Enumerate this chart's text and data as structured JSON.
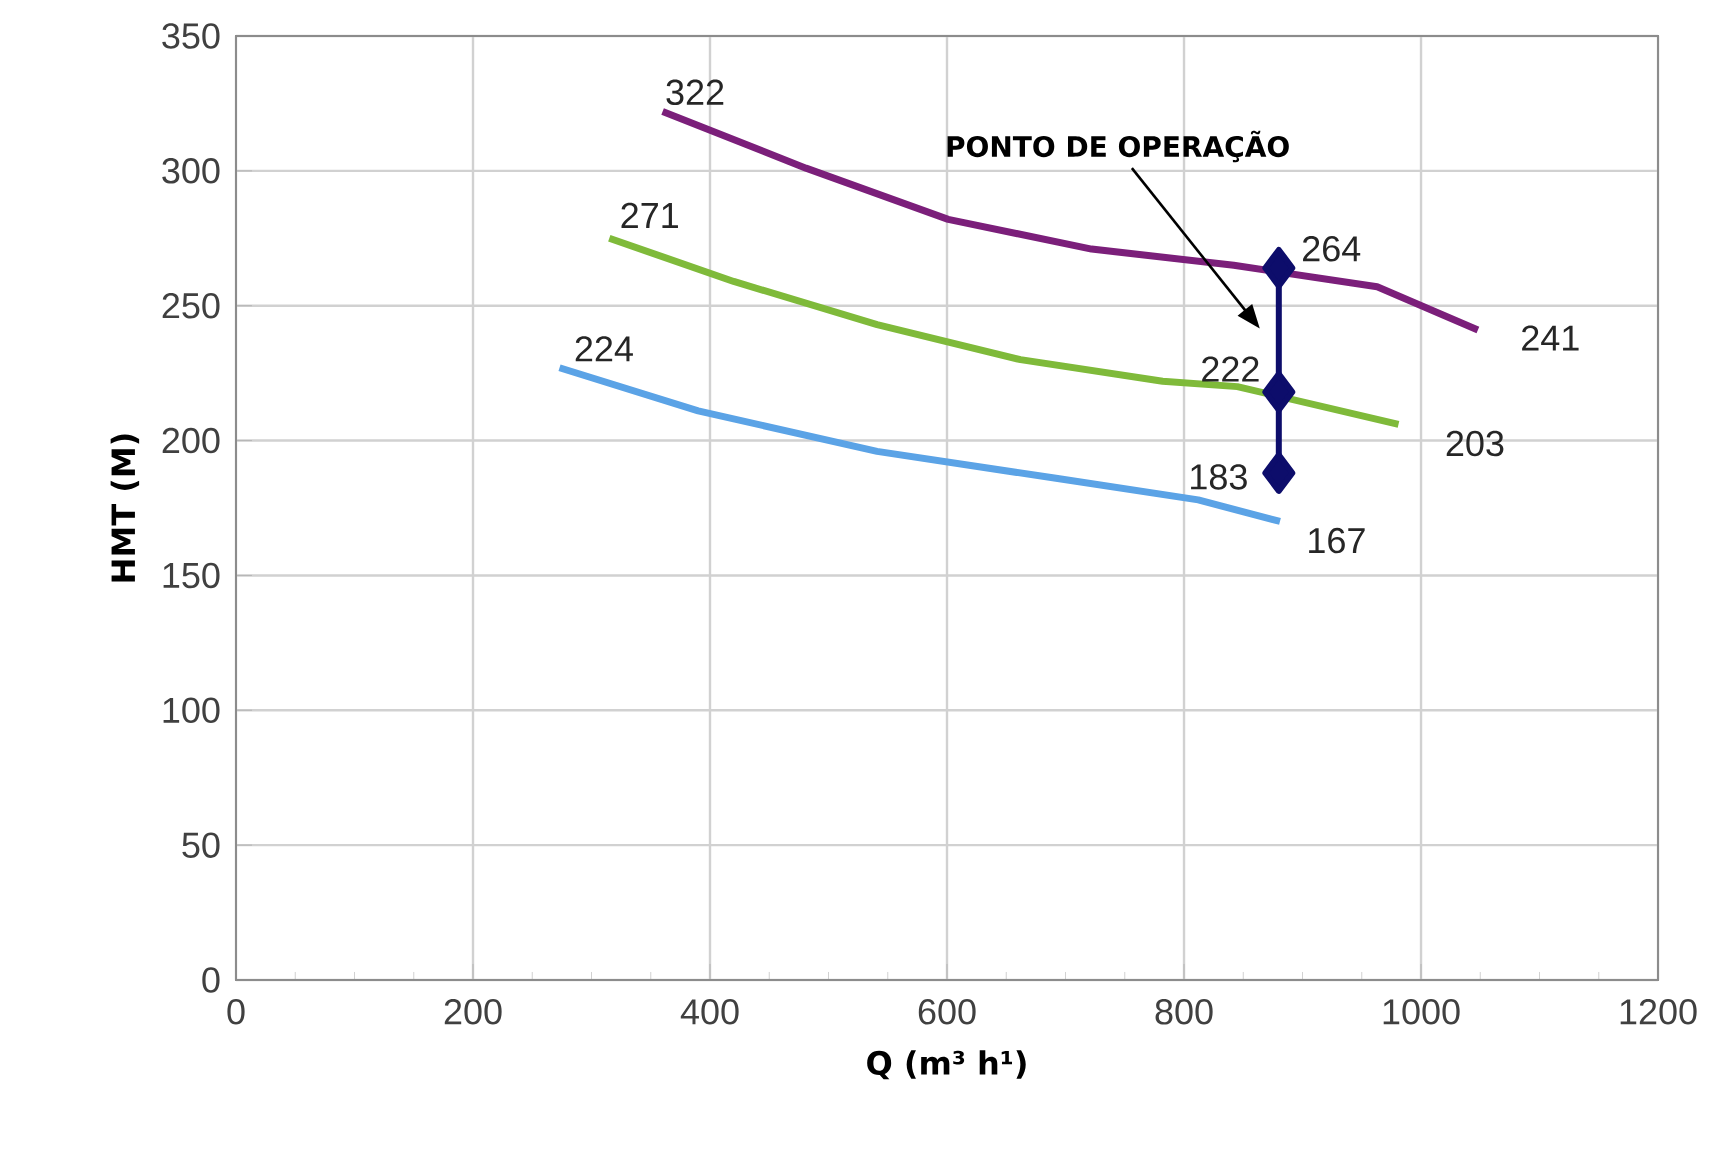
{
  "chart_data": {
    "type": "line",
    "xlabel": "Q (m³ h¹)",
    "ylabel": "HMT (M)",
    "xlim": [
      0,
      1200
    ],
    "ylim": [
      0,
      350
    ],
    "xticks": [
      0,
      200,
      400,
      600,
      800,
      1000,
      1200
    ],
    "yticks": [
      0,
      50,
      100,
      150,
      200,
      250,
      300,
      350
    ],
    "grid": true,
    "marker": "none",
    "series": [
      {
        "color": "#7b1f7a",
        "x": [
          360,
          481,
          601,
          722,
          842,
          963,
          1048
        ],
        "values": [
          322,
          301,
          282,
          271,
          265,
          257,
          241
        ]
      },
      {
        "color": "#7fba3a",
        "x": [
          315,
          420,
          541,
          662,
          782,
          845,
          981
        ],
        "values": [
          275,
          259,
          243,
          230,
          222,
          220,
          206
        ]
      },
      {
        "color": "#5ba3e6",
        "x": [
          273,
          390,
          541,
          692,
          812,
          881
        ],
        "values": [
          227,
          211,
          196,
          186,
          178,
          170
        ]
      },
      {
        "color": "#0d0d6b",
        "x": [
          880,
          880,
          880
        ],
        "values": [
          264,
          218,
          188
        ],
        "marker": "diamond"
      }
    ],
    "annotations": [
      "PONTO DE OPERAÇÃO",
      {
        "text": "322",
        "x": 360,
        "y": 322
      },
      {
        "text": "271",
        "x": 315,
        "y": 275
      },
      {
        "text": "224",
        "x": 273,
        "y": 227
      },
      {
        "text": "264",
        "x": 880,
        "y": 264
      },
      {
        "text": "241",
        "x": 1048,
        "y": 241
      },
      {
        "text": "222",
        "x": 880,
        "y": 218
      },
      {
        "text": "203",
        "x": 981,
        "y": 206
      },
      {
        "text": "183",
        "x": 880,
        "y": 188
      },
      {
        "text": "167",
        "x": 881,
        "y": 170
      }
    ]
  }
}
